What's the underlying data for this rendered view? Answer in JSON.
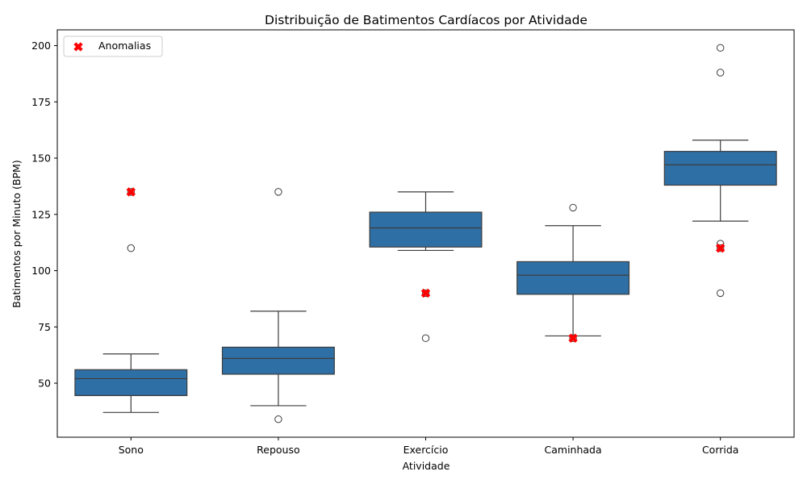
{
  "chart_data": {
    "type": "box",
    "title": "Distribuição de Batimentos Cardíacos por Atividade",
    "xlabel": "Atividade",
    "ylabel": "Batimentos por Minuto (BPM)",
    "ylim": [
      26,
      207
    ],
    "yticks": [
      50,
      75,
      100,
      125,
      150,
      175,
      200
    ],
    "categories": [
      "Sono",
      "Repouso",
      "Exercício",
      "Caminhada",
      "Corrida"
    ],
    "boxes": [
      {
        "category": "Sono",
        "whisker_low": 37,
        "q1": 44.5,
        "median": 52,
        "q3": 56,
        "whisker_high": 63,
        "outliers": [
          110,
          135
        ]
      },
      {
        "category": "Repouso",
        "whisker_low": 40,
        "q1": 54,
        "median": 61,
        "q3": 66,
        "whisker_high": 82,
        "outliers": [
          34,
          135
        ]
      },
      {
        "category": "Exercício",
        "whisker_low": 109,
        "q1": 110.5,
        "median": 119,
        "q3": 126,
        "whisker_high": 135,
        "outliers": [
          70,
          90
        ]
      },
      {
        "category": "Caminhada",
        "whisker_low": 71,
        "q1": 89.5,
        "median": 98,
        "q3": 104,
        "whisker_high": 120,
        "outliers": [
          70,
          128
        ]
      },
      {
        "category": "Corrida",
        "whisker_low": 122,
        "q1": 138,
        "median": 147,
        "q3": 153,
        "whisker_high": 158,
        "outliers": [
          90,
          110,
          112,
          188,
          199
        ]
      }
    ],
    "anomalies": {
      "name": "Anomalias",
      "points": [
        {
          "category": "Sono",
          "y": 135
        },
        {
          "category": "Exercício",
          "y": 90
        },
        {
          "category": "Caminhada",
          "y": 70
        },
        {
          "category": "Corrida",
          "y": 110
        }
      ]
    },
    "legend": {
      "placement": "top-left"
    },
    "grid": false,
    "colors": {
      "box": "#2e6fa5",
      "line": "#3d3d3d",
      "anomaly": "#ff0000"
    }
  }
}
